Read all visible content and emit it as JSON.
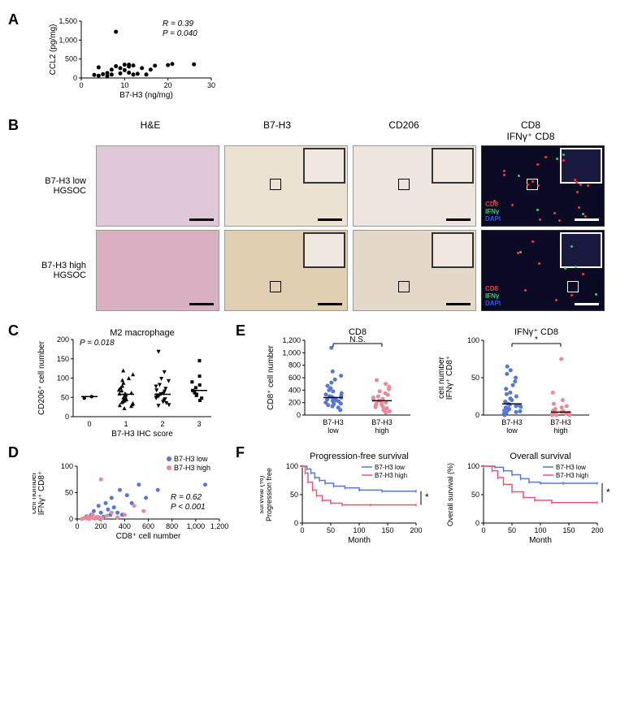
{
  "panelA": {
    "label": "A",
    "type": "scatter",
    "title_stats": {
      "r": "R = 0.39",
      "p": "P = 0.040"
    },
    "xlabel": "B7-H3 (ng/mg)",
    "ylabel": "CCL2 (pg/mg)",
    "xlim": [
      0,
      30
    ],
    "xtick_step": 10,
    "ylim": [
      0,
      1500
    ],
    "ytick_step": 500,
    "marker_color": "#000000",
    "points": [
      [
        3,
        80
      ],
      [
        4,
        60
      ],
      [
        4,
        280
      ],
      [
        5,
        100
      ],
      [
        6,
        130
      ],
      [
        6,
        50
      ],
      [
        7,
        90
      ],
      [
        7,
        220
      ],
      [
        8,
        1220
      ],
      [
        8,
        310
      ],
      [
        9,
        260
      ],
      [
        9,
        120
      ],
      [
        10,
        205
      ],
      [
        10,
        350
      ],
      [
        11,
        300
      ],
      [
        11,
        350
      ],
      [
        11,
        140
      ],
      [
        12,
        90
      ],
      [
        12,
        330
      ],
      [
        13,
        110
      ],
      [
        14,
        260
      ],
      [
        15,
        90
      ],
      [
        16,
        220
      ],
      [
        17,
        325
      ],
      [
        20,
        340
      ],
      [
        21,
        370
      ],
      [
        26,
        360
      ]
    ]
  },
  "panelB": {
    "label": "B",
    "columns": [
      "H&E",
      "B7-H3",
      "CD206",
      "CD8\nIFNγ⁺ CD8"
    ],
    "rows": [
      "B7-H3 low\nHGSOC",
      "B7-H3 high\nHGSOC"
    ],
    "if_legend": [
      {
        "color": "#ff3333",
        "label": "CD8"
      },
      {
        "color": "#33cc66",
        "label": "IFNγ"
      },
      {
        "color": "#3355ff",
        "label": "DAPI"
      }
    ],
    "histo_bg": {
      "he": "#d8b8c8",
      "ihc": "#e8dcc8",
      "dark": "#0a0a30"
    }
  },
  "panelC": {
    "label": "C",
    "type": "scatter-categorical",
    "title": "M2 macrophage",
    "pvalue": "P = 0.018",
    "xlabel": "B7-H3 IHC score",
    "ylabel": "CD206⁺ cell number",
    "categories": [
      "0",
      "1",
      "2",
      "3"
    ],
    "ylim": [
      0,
      200
    ],
    "ytick_step": 50,
    "marker_color": "#000000",
    "data": {
      "0": [
        48,
        52
      ],
      "1": [
        22,
        28,
        30,
        32,
        35,
        38,
        40,
        42,
        45,
        48,
        50,
        52,
        55,
        58,
        60,
        60,
        62,
        68,
        70,
        75,
        80,
        88,
        95,
        100,
        110,
        120
      ],
      "2": [
        28,
        30,
        35,
        38,
        42,
        45,
        48,
        50,
        52,
        55,
        58,
        60,
        65,
        68,
        72,
        78,
        82,
        92,
        98,
        115,
        168
      ],
      "3": [
        42,
        48,
        55,
        58,
        62,
        68,
        75,
        82,
        90,
        105,
        145
      ]
    },
    "markers": [
      "circle",
      "triangle-up",
      "triangle-down",
      "square"
    ]
  },
  "panelD": {
    "label": "D",
    "type": "scatter",
    "xlabel": "CD8⁺ cell number",
    "ylabel": "IFNγ⁺ CD8⁺\ncell number",
    "xlim": [
      0,
      1200
    ],
    "xtick_step": 200,
    "ylim": [
      0,
      100
    ],
    "ytick_step": 50,
    "stats": {
      "r": "R = 0.62",
      "p": "P < 0.001"
    },
    "legend": [
      {
        "color": "#5577dd",
        "label": "B7-H3 low"
      },
      {
        "color": "#ee8899",
        "label": "B7-H3 high"
      }
    ],
    "points_low": [
      [
        80,
        5
      ],
      [
        120,
        8
      ],
      [
        140,
        15
      ],
      [
        160,
        3
      ],
      [
        180,
        25
      ],
      [
        190,
        2
      ],
      [
        200,
        12
      ],
      [
        220,
        4
      ],
      [
        240,
        30
      ],
      [
        260,
        18
      ],
      [
        280,
        8
      ],
      [
        290,
        40
      ],
      [
        310,
        22
      ],
      [
        340,
        12
      ],
      [
        360,
        55
      ],
      [
        380,
        8
      ],
      [
        420,
        45
      ],
      [
        460,
        30
      ],
      [
        520,
        65
      ],
      [
        580,
        40
      ],
      [
        680,
        55
      ],
      [
        1080,
        65
      ]
    ],
    "points_high": [
      [
        40,
        0
      ],
      [
        60,
        2
      ],
      [
        80,
        1
      ],
      [
        90,
        5
      ],
      [
        100,
        0
      ],
      [
        120,
        3
      ],
      [
        130,
        8
      ],
      [
        150,
        1
      ],
      [
        170,
        4
      ],
      [
        190,
        0
      ],
      [
        200,
        75
      ],
      [
        210,
        2
      ],
      [
        250,
        6
      ],
      [
        290,
        12
      ],
      [
        340,
        3
      ],
      [
        400,
        8
      ],
      [
        480,
        25
      ],
      [
        560,
        15
      ]
    ]
  },
  "panelE": {
    "label": "E",
    "charts": [
      {
        "title": "CD8",
        "ylabel": "CD8⁺ cell number",
        "ylim": [
          0,
          1200
        ],
        "ytick_step": 200,
        "sig": "N.S.",
        "groups": [
          "B7-H3\nlow",
          "B7-H3\nhigh"
        ],
        "colors": [
          "#5577dd",
          "#ee8899"
        ],
        "data_low": [
          80,
          120,
          140,
          160,
          175,
          185,
          200,
          210,
          220,
          230,
          240,
          250,
          260,
          270,
          280,
          290,
          300,
          310,
          330,
          350,
          380,
          400,
          430,
          470,
          520,
          570,
          630,
          700,
          1080
        ],
        "data_high": [
          40,
          60,
          80,
          95,
          110,
          125,
          140,
          155,
          170,
          185,
          200,
          215,
          230,
          245,
          260,
          280,
          300,
          325,
          350,
          380,
          415,
          455,
          500,
          560
        ]
      },
      {
        "title": "IFNγ⁺ CD8",
        "ylabel": "IFNγ⁺ CD8⁺\ncell number",
        "ylim": [
          0,
          100
        ],
        "ytick_step": 50,
        "sig": "*",
        "groups": [
          "B7-H3\nlow",
          "B7-H3\nhigh"
        ],
        "colors": [
          "#5577dd",
          "#ee8899"
        ],
        "data_low": [
          0,
          2,
          3,
          4,
          5,
          6,
          7,
          8,
          9,
          10,
          11,
          12,
          13,
          14,
          15,
          18,
          20,
          22,
          25,
          28,
          30,
          35,
          40,
          45,
          50,
          55,
          60,
          65
        ],
        "data_high": [
          0,
          0,
          0,
          1,
          1,
          2,
          2,
          3,
          3,
          4,
          4,
          5,
          6,
          8,
          10,
          12,
          15,
          20,
          30,
          75
        ]
      }
    ]
  },
  "panelF": {
    "label": "F",
    "charts": [
      {
        "title": "Progression-free survival",
        "ylabel": "Progression free\nsurvival (%)",
        "xlabel": "Month",
        "xlim": [
          0,
          200
        ],
        "xtick_step": 50,
        "ylim": [
          0,
          100
        ],
        "ytick_step": 50,
        "sig": "*",
        "legend": [
          {
            "color": "#5577dd",
            "label": "B7-H3 low"
          },
          {
            "color": "#ee5577",
            "label": "B7-H3 high"
          }
        ],
        "curve_low": [
          [
            0,
            100
          ],
          [
            8,
            95
          ],
          [
            15,
            88
          ],
          [
            22,
            80
          ],
          [
            30,
            75
          ],
          [
            40,
            70
          ],
          [
            55,
            65
          ],
          [
            75,
            62
          ],
          [
            100,
            58
          ],
          [
            140,
            56
          ],
          [
            200,
            56
          ]
        ],
        "curve_high": [
          [
            0,
            100
          ],
          [
            5,
            88
          ],
          [
            10,
            72
          ],
          [
            18,
            58
          ],
          [
            25,
            48
          ],
          [
            35,
            40
          ],
          [
            50,
            35
          ],
          [
            70,
            32
          ],
          [
            120,
            32
          ],
          [
            200,
            32
          ]
        ]
      },
      {
        "title": "Overall survival",
        "ylabel": "Overall survival (%)",
        "xlabel": "Month",
        "xlim": [
          0,
          200
        ],
        "xtick_step": 50,
        "ylim": [
          0,
          100
        ],
        "ytick_step": 50,
        "sig": "*",
        "legend": [
          {
            "color": "#5577dd",
            "label": "B7-H3 low"
          },
          {
            "color": "#ee5577",
            "label": "B7-H3 high"
          }
        ],
        "curve_low": [
          [
            0,
            100
          ],
          [
            20,
            98
          ],
          [
            35,
            92
          ],
          [
            50,
            85
          ],
          [
            65,
            78
          ],
          [
            80,
            72
          ],
          [
            100,
            70
          ],
          [
            140,
            70
          ],
          [
            200,
            70
          ]
        ],
        "curve_high": [
          [
            0,
            100
          ],
          [
            15,
            92
          ],
          [
            25,
            80
          ],
          [
            35,
            68
          ],
          [
            50,
            55
          ],
          [
            70,
            45
          ],
          [
            90,
            40
          ],
          [
            120,
            36
          ],
          [
            200,
            36
          ]
        ]
      }
    ]
  }
}
